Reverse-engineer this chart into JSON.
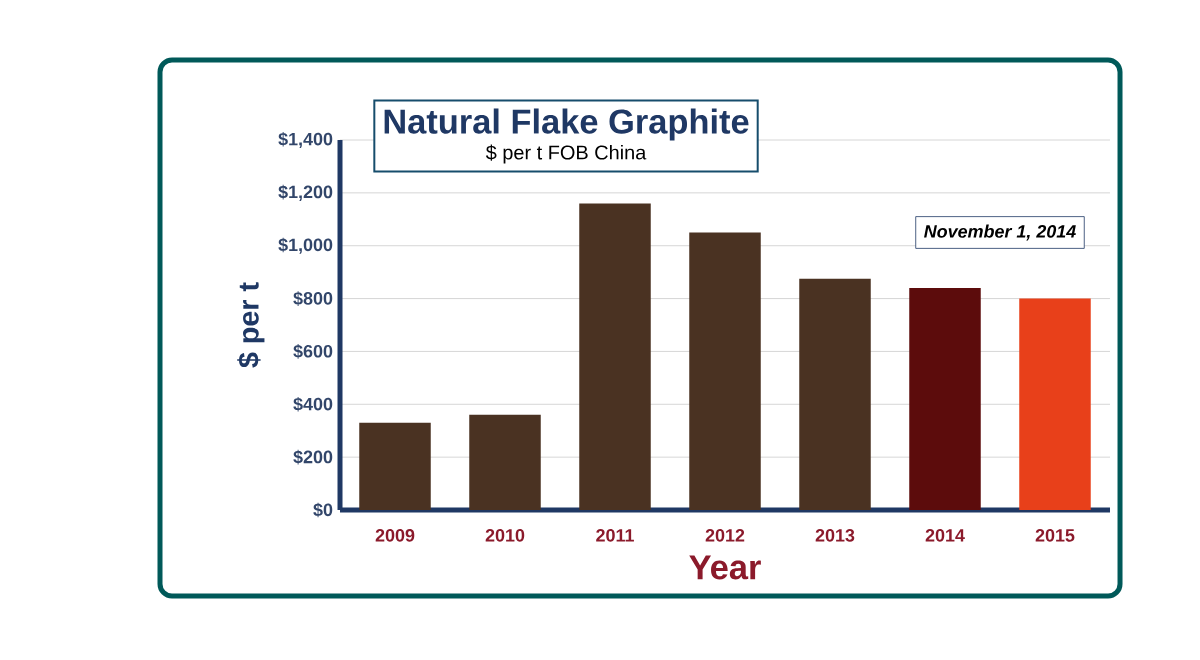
{
  "chart_data": {
    "type": "bar",
    "title": "Natural Flake Graphite",
    "subtitle": "$ per t FOB China",
    "xlabel": "Year",
    "ylabel": "$ per t",
    "categories": [
      "2009",
      "2010",
      "2011",
      "2012",
      "2013",
      "2014",
      "2015"
    ],
    "values": [
      330,
      360,
      1160,
      1050,
      875,
      840,
      800
    ],
    "colors": [
      "#4a3222",
      "#4a3222",
      "#4a3222",
      "#4a3222",
      "#4a3222",
      "#5c0c0c",
      "#e8401a"
    ],
    "ylim": [
      0,
      1400
    ],
    "yticks": [
      {
        "value": 0,
        "label": "$0"
      },
      {
        "value": 200,
        "label": "$200"
      },
      {
        "value": 400,
        "label": "$400"
      },
      {
        "value": 600,
        "label": "$600"
      },
      {
        "value": 800,
        "label": "$800"
      },
      {
        "value": 1000,
        "label": "$1,000"
      },
      {
        "value": 1200,
        "label": "$1,200"
      },
      {
        "value": 1400,
        "label": "$1,400"
      }
    ],
    "grid": "y",
    "annotations": [
      "November 1, 2014"
    ]
  }
}
